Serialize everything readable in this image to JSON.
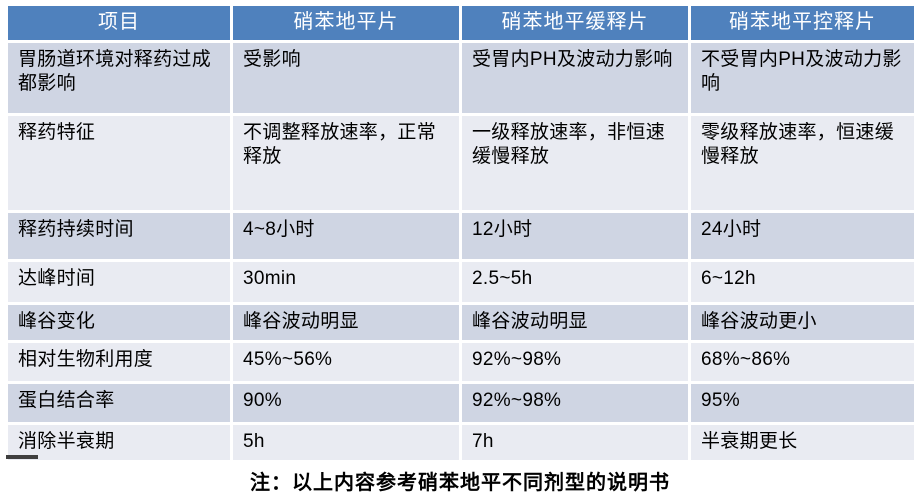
{
  "table": {
    "headers": [
      "项目",
      "硝苯地平片",
      "硝苯地平缓释片",
      "硝苯地平控释片"
    ],
    "rows": [
      {
        "c0": "胃肠道环境对释药过成都影响",
        "c1": "受影响",
        "c2": "受胃内PH及波动力影响",
        "c3": "不受胃内PH及波动力影响"
      },
      {
        "c0": "释药特征",
        "c1": "不调整释放速率，正常释放",
        "c2": "一级释放速率，非恒速缓慢释放",
        "c3": "零级释放速率，恒速缓慢释放"
      },
      {
        "c0": "释药持续时间",
        "c1": "4~8小时",
        "c2": "12小时",
        "c3": "24小时"
      },
      {
        "c0": "达峰时间",
        "c1": "30min",
        "c2": "2.5~5h",
        "c3": "6~12h"
      },
      {
        "c0": "峰谷变化",
        "c1": "峰谷波动明显",
        "c2": "峰谷波动明显",
        "c3": "峰谷波动更小"
      },
      {
        "c0": "相对生物利用度",
        "c1": "45%~56%",
        "c2": "92%~98%",
        "c3": "68%~86%"
      },
      {
        "c0": "蛋白结合率",
        "c1": "90%",
        "c2": "92%~98%",
        "c3": "95%"
      },
      {
        "c0": "消除半衰期",
        "c1": "5h",
        "c2": "7h",
        "c3": "半衰期更长"
      }
    ]
  },
  "footer": {
    "note": "注：以上内容参考硝苯地平不同剂型的说明书"
  },
  "colors": {
    "header_bg": "#4f81bd",
    "header_text": "#ffffff",
    "band_dark": "#cfd5e3",
    "band_light": "#e9ebf2",
    "body_text": "#000000"
  }
}
